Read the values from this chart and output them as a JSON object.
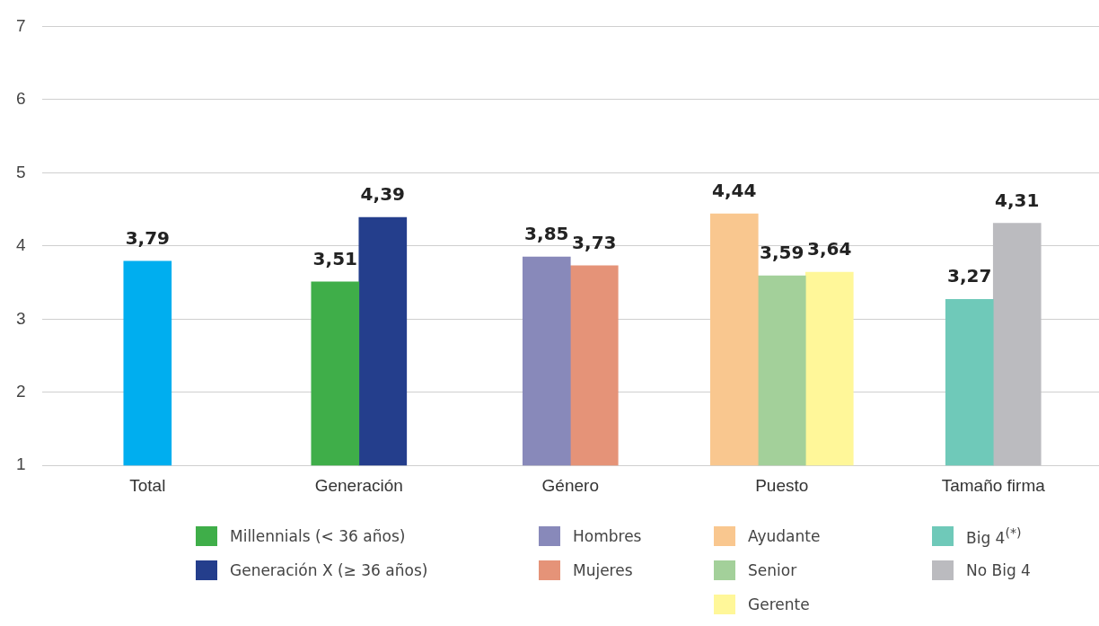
{
  "chart_data": {
    "type": "bar",
    "categories": [
      "Total",
      "Generación",
      "Género",
      "Puesto",
      "Tamaño firma"
    ],
    "series": [
      {
        "color": "#00aeef",
        "values": [
          3.79,
          null,
          null,
          null,
          null
        ],
        "value_labels": [
          "3,79",
          null,
          null,
          null,
          null
        ]
      },
      {
        "name": "Millennials (< 36 años)",
        "color": "#3fae49",
        "values": [
          null,
          3.51,
          null,
          null,
          null
        ],
        "value_labels": [
          null,
          "3,51",
          null,
          null,
          null
        ]
      },
      {
        "name": "Generación X (≥ 36 años)",
        "color": "#243e8c",
        "values": [
          null,
          4.39,
          null,
          null,
          null
        ],
        "value_labels": [
          null,
          "4,39",
          null,
          null,
          null
        ]
      },
      {
        "name": "Hombres",
        "color": "#8889ba",
        "values": [
          null,
          null,
          3.85,
          null,
          null
        ],
        "value_labels": [
          null,
          null,
          "3,85",
          null,
          null
        ]
      },
      {
        "name": "Mujeres",
        "color": "#e59378",
        "values": [
          null,
          null,
          3.73,
          null,
          null
        ],
        "value_labels": [
          null,
          null,
          "3,73",
          null,
          null
        ]
      },
      {
        "name": "Ayudante",
        "color": "#f9c78f",
        "values": [
          null,
          null,
          null,
          4.44,
          null
        ],
        "value_labels": [
          null,
          null,
          null,
          "4,44",
          null
        ]
      },
      {
        "name": "Senior",
        "color": "#a3d09a",
        "values": [
          null,
          null,
          null,
          3.59,
          null
        ],
        "value_labels": [
          null,
          null,
          null,
          "3,59",
          null
        ]
      },
      {
        "name": "Gerente",
        "color": "#fff799",
        "values": [
          null,
          null,
          null,
          3.64,
          null
        ],
        "value_labels": [
          null,
          null,
          null,
          "3,64",
          null
        ]
      },
      {
        "name": "Big 4$^{(*)}$",
        "color": "#6fc9b9",
        "values": [
          null,
          null,
          null,
          null,
          3.27
        ],
        "value_labels": [
          null,
          null,
          null,
          null,
          "3,27"
        ]
      },
      {
        "name": "No Big 4",
        "color": "#bbbbbf",
        "values": [
          null,
          null,
          null,
          null,
          4.31
        ],
        "value_labels": [
          null,
          null,
          null,
          null,
          "4,31"
        ]
      }
    ],
    "ylim": [
      1,
      7
    ],
    "yticks": [
      1,
      2,
      3,
      4,
      5,
      6,
      7
    ],
    "grid": "y",
    "legend": "bottom"
  }
}
